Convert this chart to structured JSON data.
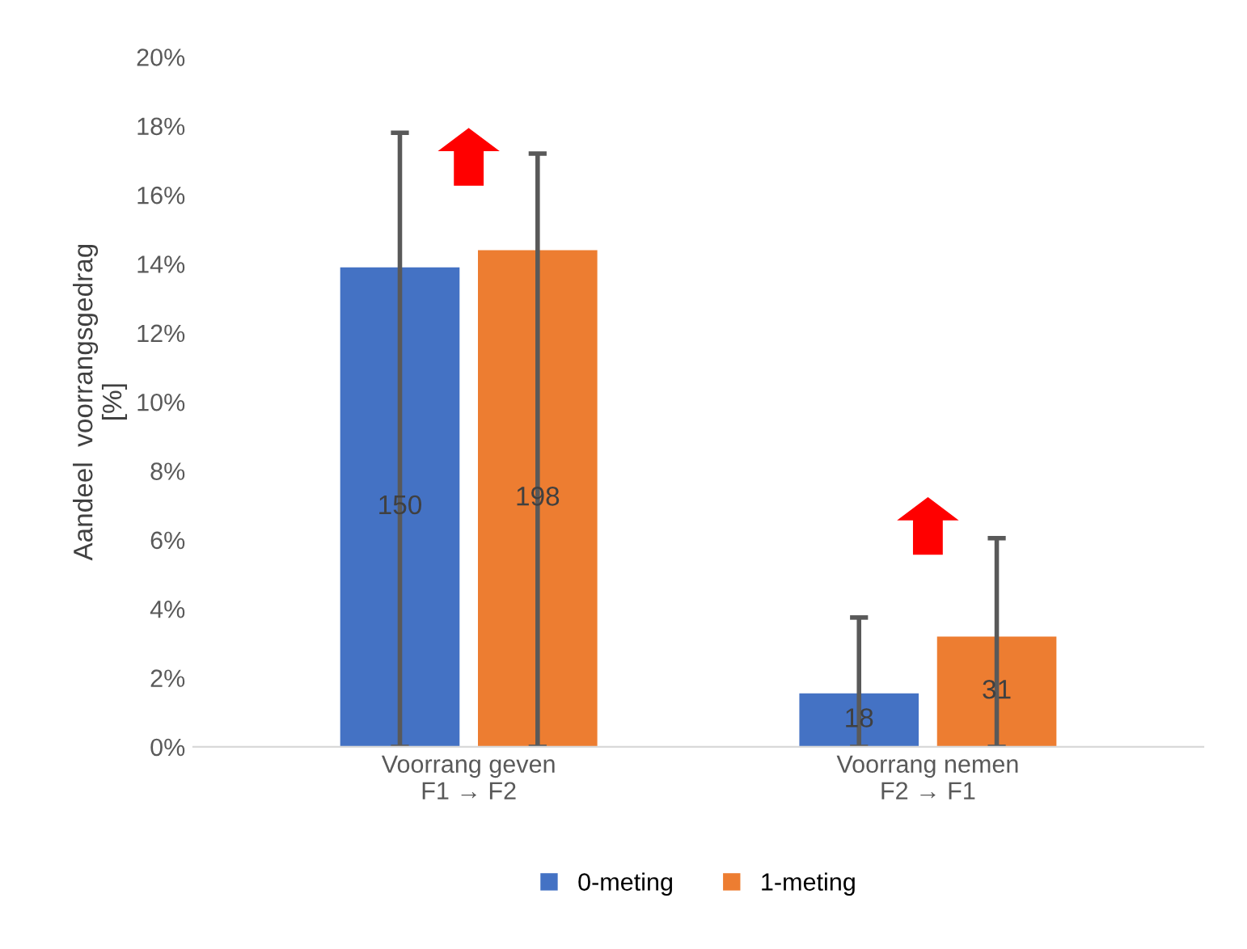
{
  "chart_data": {
    "type": "bar",
    "categories": [
      "Voorrang geven\nF1 → F2",
      "Voorrang nemen\nF2 → F1"
    ],
    "ylabel": "Aandeel  voorrangsgedrag\n[%]",
    "series": [
      {
        "name": "0-meting",
        "color": "#4472c4",
        "values": [
          13.9,
          1.55
        ],
        "errors": [
          [
            0,
            17.8
          ],
          [
            0,
            3.75
          ]
        ]
      },
      {
        "name": "1-meting",
        "color": "#ed7d31",
        "values": [
          14.4,
          3.2
        ],
        "errors": [
          [
            0,
            17.2
          ],
          [
            0,
            6.05
          ]
        ]
      }
    ],
    "annotations": [
      "150",
      "198",
      "18",
      "31"
    ],
    "ylim": [
      0,
      20
    ],
    "yticks": [
      {
        "value": 0,
        "label": "0%"
      },
      {
        "value": 2,
        "label": "2%"
      },
      {
        "value": 4,
        "label": "4%"
      },
      {
        "value": 6,
        "label": "6%"
      },
      {
        "value": 8,
        "label": "8%"
      },
      {
        "value": 10,
        "label": "10%"
      },
      {
        "value": 12,
        "label": "12%"
      },
      {
        "value": 14,
        "label": "14%"
      },
      {
        "value": 16,
        "label": "16%"
      },
      {
        "value": 18,
        "label": "18%"
      },
      {
        "value": 20,
        "label": "20%"
      }
    ],
    "grid": false,
    "legend": "bottom"
  }
}
